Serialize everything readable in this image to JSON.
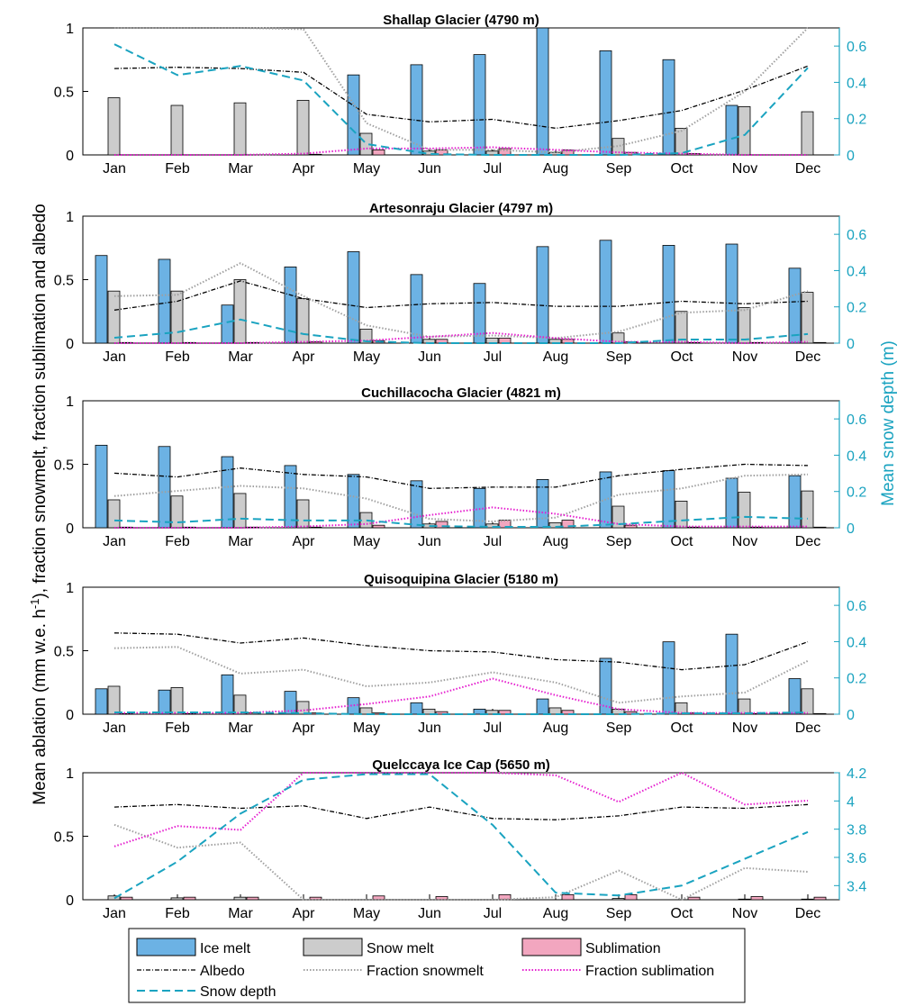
{
  "colors": {
    "ice_melt": "#6cb2e4",
    "snow_melt": "#cccccc",
    "sublimation": "#f2a6bf",
    "albedo": "#000000",
    "fraction_snowmelt": "#a0a0a0",
    "fraction_sublimation": "#e51ecf",
    "snow_depth": "#1aa3c0",
    "right_axis": "#1aa3c0"
  },
  "axes": {
    "left_label_main": "Mean ablation (mm w.e. h",
    "left_label_sup": "-1",
    "left_label_rest": "), fraction snowmelt, fraction sublimation and albedo",
    "right_label": "Mean snow depth (m)"
  },
  "legend": {
    "ice_melt": "Ice melt",
    "snow_melt": "Snow melt",
    "sublimation": "Sublimation",
    "albedo": "Albedo",
    "fraction_snowmelt": "Fraction snowmelt",
    "fraction_sublimation": "Fraction sublimation",
    "snow_depth": "Snow depth"
  },
  "chart_data": [
    {
      "type": "bar",
      "title": "Shallap Glacier (4790 m)",
      "categories": [
        "Jan",
        "Feb",
        "Mar",
        "Apr",
        "May",
        "Jun",
        "Jul",
        "Aug",
        "Sep",
        "Oct",
        "Nov",
        "Dec"
      ],
      "ylim": [
        0,
        1
      ],
      "yticks": [
        "0",
        "0.5",
        "1"
      ],
      "y2lim": [
        0,
        0.7
      ],
      "y2ticks": [
        "0",
        "0.2",
        "0.4",
        "0.6"
      ],
      "series": [
        {
          "name": "Ice melt",
          "values": [
            0,
            0,
            0,
            0,
            0.63,
            0.71,
            0.79,
            1.0,
            0.82,
            0.75,
            0.39,
            0
          ]
        },
        {
          "name": "Snow melt",
          "values": [
            0.45,
            0.39,
            0.41,
            0.43,
            0.17,
            0.03,
            0.03,
            0.02,
            0.13,
            0.21,
            0.38,
            0.34
          ]
        },
        {
          "name": "Sublimation",
          "values": [
            0,
            0,
            0,
            0.005,
            0.04,
            0.04,
            0.05,
            0.04,
            0.02,
            0.01,
            0,
            0
          ]
        },
        {
          "name": "Albedo",
          "values": [
            0.68,
            0.69,
            0.68,
            0.65,
            0.32,
            0.26,
            0.28,
            0.21,
            0.27,
            0.35,
            0.51,
            0.7
          ]
        },
        {
          "name": "Fraction snowmelt",
          "values": [
            1.0,
            1.0,
            1.0,
            0.99,
            0.25,
            0.04,
            0.04,
            0.02,
            0.07,
            0.19,
            0.5,
            1.0
          ]
        },
        {
          "name": "Fraction sublimation",
          "values": [
            0,
            0,
            0,
            0.01,
            0.05,
            0.05,
            0.06,
            0.04,
            0.02,
            0.01,
            0,
            0
          ]
        },
        {
          "name": "Snow depth",
          "axis": "right",
          "values": [
            0.61,
            0.44,
            0.49,
            0.41,
            0.06,
            0.005,
            0,
            0,
            0,
            0.01,
            0.11,
            0.48
          ]
        }
      ]
    },
    {
      "type": "bar",
      "title": "Artesonraju Glacier (4797 m)",
      "categories": [
        "Jan",
        "Feb",
        "Mar",
        "Apr",
        "May",
        "Jun",
        "Jul",
        "Aug",
        "Sep",
        "Oct",
        "Nov",
        "Dec"
      ],
      "ylim": [
        0,
        1
      ],
      "yticks": [
        "0",
        "0.5",
        "1"
      ],
      "y2lim": [
        0,
        0.7
      ],
      "y2ticks": [
        "0",
        "0.2",
        "0.4",
        "0.6"
      ],
      "series": [
        {
          "name": "Ice melt",
          "values": [
            0.69,
            0.66,
            0.3,
            0.6,
            0.72,
            0.54,
            0.47,
            0.76,
            0.81,
            0.77,
            0.78,
            0.59
          ]
        },
        {
          "name": "Snow melt",
          "values": [
            0.41,
            0.41,
            0.5,
            0.35,
            0.11,
            0.03,
            0.04,
            0.03,
            0.08,
            0.25,
            0.28,
            0.4
          ]
        },
        {
          "name": "Sublimation",
          "values": [
            0.005,
            0.005,
            0.005,
            0.01,
            0.02,
            0.03,
            0.04,
            0.03,
            0.01,
            0.005,
            0.005,
            0.005
          ]
        },
        {
          "name": "Albedo",
          "values": [
            0.26,
            0.33,
            0.49,
            0.35,
            0.28,
            0.31,
            0.32,
            0.29,
            0.29,
            0.33,
            0.31,
            0.33
          ]
        },
        {
          "name": "Fraction snowmelt",
          "values": [
            0.37,
            0.38,
            0.63,
            0.37,
            0.14,
            0.05,
            0.06,
            0.04,
            0.09,
            0.24,
            0.26,
            0.41
          ]
        },
        {
          "name": "Fraction sublimation",
          "values": [
            0,
            0,
            0,
            0.01,
            0.02,
            0.05,
            0.08,
            0.04,
            0.01,
            0.01,
            0,
            0.01
          ]
        },
        {
          "name": "Snow depth",
          "axis": "right",
          "values": [
            0.03,
            0.06,
            0.13,
            0.05,
            0.01,
            0,
            0,
            0,
            0,
            0.02,
            0.02,
            0.05
          ]
        }
      ]
    },
    {
      "type": "bar",
      "title": "Cuchillacocha Glacier (4821 m)",
      "categories": [
        "Jan",
        "Feb",
        "Mar",
        "Apr",
        "May",
        "Jun",
        "Jul",
        "Aug",
        "Sep",
        "Oct",
        "Nov",
        "Dec"
      ],
      "ylim": [
        0,
        1
      ],
      "yticks": [
        "0",
        "0.5",
        "1"
      ],
      "y2lim": [
        0,
        0.7
      ],
      "y2ticks": [
        "0",
        "0.2",
        "0.4",
        "0.6"
      ],
      "series": [
        {
          "name": "Ice melt",
          "values": [
            0.65,
            0.64,
            0.56,
            0.49,
            0.42,
            0.37,
            0.31,
            0.38,
            0.44,
            0.45,
            0.39,
            0.41
          ]
        },
        {
          "name": "Snow melt",
          "values": [
            0.22,
            0.25,
            0.27,
            0.22,
            0.12,
            0.03,
            0.03,
            0.04,
            0.17,
            0.21,
            0.28,
            0.29
          ]
        },
        {
          "name": "Sublimation",
          "values": [
            0.005,
            0.005,
            0.005,
            0.005,
            0.02,
            0.05,
            0.06,
            0.06,
            0.02,
            0.005,
            0.005,
            0.005
          ]
        },
        {
          "name": "Albedo",
          "values": [
            0.43,
            0.4,
            0.47,
            0.42,
            0.4,
            0.31,
            0.32,
            0.32,
            0.41,
            0.46,
            0.5,
            0.49
          ]
        },
        {
          "name": "Fraction snowmelt",
          "values": [
            0.25,
            0.29,
            0.33,
            0.31,
            0.23,
            0.07,
            0.05,
            0.08,
            0.26,
            0.31,
            0.41,
            0.42
          ]
        },
        {
          "name": "Fraction sublimation",
          "values": [
            0,
            0,
            0,
            0.01,
            0.03,
            0.1,
            0.16,
            0.11,
            0.03,
            0.01,
            0.01,
            0.01
          ]
        },
        {
          "name": "Snow depth",
          "axis": "right",
          "values": [
            0.04,
            0.03,
            0.05,
            0.04,
            0.04,
            0.01,
            0.005,
            0.005,
            0.02,
            0.04,
            0.06,
            0.05
          ]
        }
      ]
    },
    {
      "type": "bar",
      "title": "Quisoquipina Glacier (5180 m)",
      "categories": [
        "Jan",
        "Feb",
        "Mar",
        "Apr",
        "May",
        "Jun",
        "Jul",
        "Aug",
        "Sep",
        "Oct",
        "Nov",
        "Dec"
      ],
      "ylim": [
        0,
        1
      ],
      "yticks": [
        "0",
        "0.5",
        "1"
      ],
      "y2lim": [
        0,
        0.7
      ],
      "y2ticks": [
        "0",
        "0.2",
        "0.4",
        "0.6"
      ],
      "series": [
        {
          "name": "Ice melt",
          "values": [
            0.2,
            0.19,
            0.31,
            0.18,
            0.13,
            0.09,
            0.04,
            0.12,
            0.44,
            0.57,
            0.63,
            0.28
          ]
        },
        {
          "name": "Snow melt",
          "values": [
            0.22,
            0.21,
            0.15,
            0.1,
            0.05,
            0.04,
            0.03,
            0.05,
            0.04,
            0.09,
            0.12,
            0.2
          ]
        },
        {
          "name": "Sublimation",
          "values": [
            0.005,
            0.005,
            0.01,
            0.01,
            0.01,
            0.02,
            0.03,
            0.03,
            0.02,
            0.01,
            0.005,
            0.005
          ]
        },
        {
          "name": "Albedo",
          "values": [
            0.64,
            0.63,
            0.56,
            0.6,
            0.54,
            0.5,
            0.49,
            0.43,
            0.41,
            0.35,
            0.39,
            0.57
          ]
        },
        {
          "name": "Fraction snowmelt",
          "values": [
            0.52,
            0.53,
            0.32,
            0.35,
            0.22,
            0.25,
            0.33,
            0.25,
            0.09,
            0.14,
            0.17,
            0.42
          ]
        },
        {
          "name": "Fraction sublimation",
          "values": [
            0.01,
            0.01,
            0.01,
            0.03,
            0.08,
            0.14,
            0.28,
            0.15,
            0.04,
            0.01,
            0.01,
            0.01
          ]
        },
        {
          "name": "Snow depth",
          "axis": "right",
          "values": [
            0.01,
            0.01,
            0.01,
            0.005,
            0,
            0,
            0,
            0,
            0,
            0.005,
            0.005,
            0.01
          ]
        }
      ]
    },
    {
      "type": "bar",
      "title": "Quelccaya Ice Cap (5650 m)",
      "categories": [
        "Jan",
        "Feb",
        "Mar",
        "Apr",
        "May",
        "Jun",
        "Jul",
        "Aug",
        "Sep",
        "Oct",
        "Nov",
        "Dec"
      ],
      "ylim": [
        0,
        1
      ],
      "yticks": [
        "0",
        "0.5",
        "1"
      ],
      "y2lim": [
        3.3,
        4.2
      ],
      "y2ticks": [
        "3.4",
        "3.6",
        "3.8",
        "4",
        "4.2"
      ],
      "series": [
        {
          "name": "Ice melt",
          "values": [
            0,
            0,
            0,
            0,
            0,
            0,
            0,
            0,
            0,
            0,
            0,
            0
          ]
        },
        {
          "name": "Snow melt",
          "values": [
            0.03,
            0.015,
            0.02,
            0,
            0,
            0,
            0,
            0,
            0.01,
            0,
            0.005,
            0.005
          ]
        },
        {
          "name": "Sublimation",
          "values": [
            0.02,
            0.02,
            0.02,
            0.02,
            0.03,
            0.025,
            0.04,
            0.04,
            0.04,
            0.02,
            0.025,
            0.02
          ]
        },
        {
          "name": "Albedo",
          "values": [
            0.73,
            0.75,
            0.72,
            0.74,
            0.64,
            0.73,
            0.64,
            0.63,
            0.66,
            0.73,
            0.72,
            0.75
          ]
        },
        {
          "name": "Fraction snowmelt",
          "values": [
            0.59,
            0.41,
            0.45,
            0,
            0,
            0,
            0,
            0.02,
            0.23,
            0,
            0.25,
            0.22
          ]
        },
        {
          "name": "Fraction sublimation",
          "values": [
            0.42,
            0.58,
            0.55,
            1.0,
            1.0,
            1.0,
            1.0,
            0.98,
            0.77,
            1.0,
            0.75,
            0.78
          ]
        },
        {
          "name": "Snow depth",
          "axis": "right",
          "values": [
            3.31,
            3.57,
            3.91,
            4.15,
            4.19,
            4.19,
            3.83,
            3.35,
            3.33,
            3.4,
            3.59,
            3.78
          ]
        }
      ]
    }
  ]
}
